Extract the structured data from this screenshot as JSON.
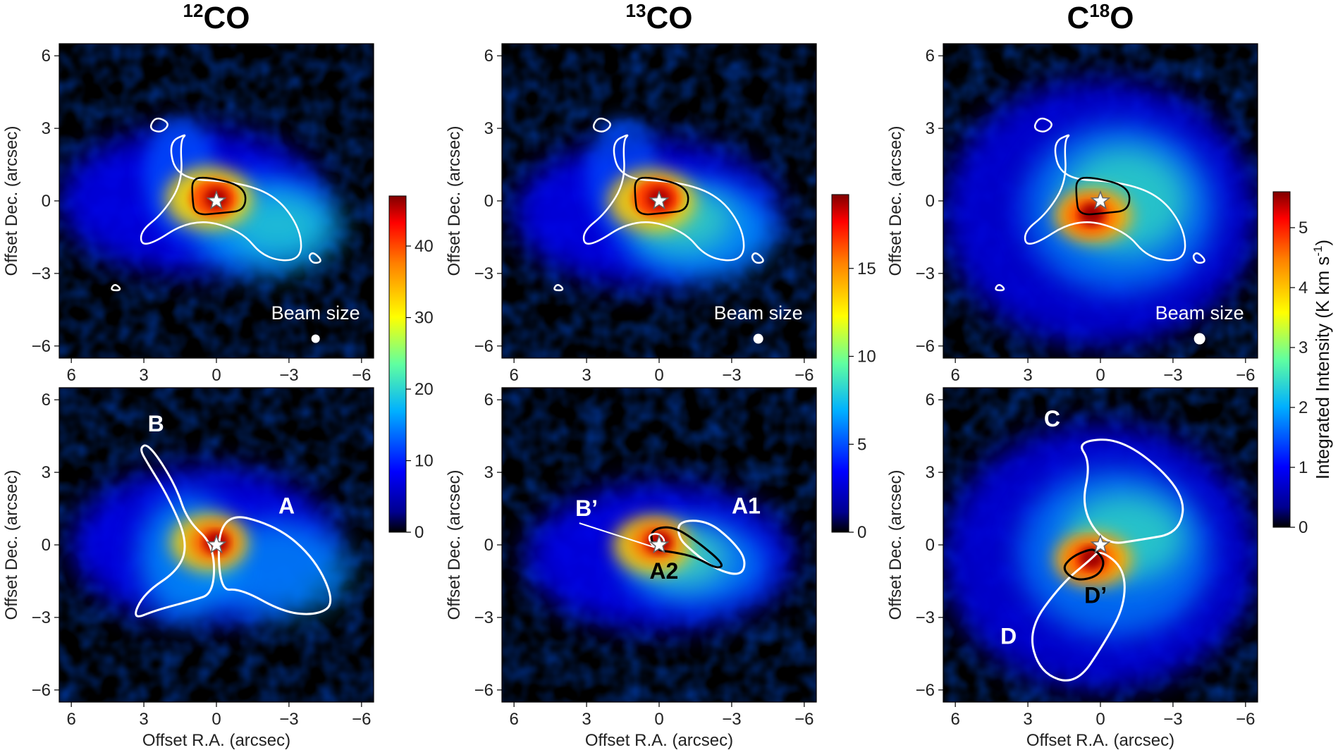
{
  "columns": [
    {
      "id": "12co",
      "title_sup": "12",
      "title_main": "CO",
      "cbar_max": 47,
      "cbar_ticks": [
        0,
        10,
        20,
        30,
        40
      ],
      "beam_label": "Beam size",
      "beam_r": 6
    },
    {
      "id": "13co",
      "title_sup": "13",
      "title_main": "CO",
      "cbar_max": 19.2,
      "cbar_ticks": [
        0,
        5,
        10,
        15
      ],
      "beam_label": "Beam size",
      "beam_r": 7
    },
    {
      "id": "c18o",
      "title_pre": "C",
      "title_sup": "18",
      "title_main": "O",
      "cbar_max": 5.6,
      "cbar_ticks": [
        0,
        1,
        2,
        3,
        4,
        5
      ],
      "beam_label": "Beam size",
      "beam_r": 8
    }
  ],
  "cbar_label_main": "Integrated Intensity (K km s",
  "cbar_label_sup": "-1",
  "cbar_label_end": ")",
  "chart_data": [
    {
      "type": "heatmap",
      "panel": "12CO integrated intensity map",
      "xlabel": "Offset R.A. (arcsec)",
      "ylabel": "Offset Dec. (arcsec)",
      "xlim": [
        6.5,
        -6.5
      ],
      "ylim": [
        -6.5,
        6.5
      ],
      "xticks": [
        6,
        3,
        0,
        -3,
        -6
      ],
      "yticks": [
        6,
        3,
        0,
        -3,
        -6
      ],
      "colorbar": {
        "min": 0,
        "max": 47,
        "ticks": [
          0,
          10,
          20,
          30,
          40
        ],
        "cmap": "jet"
      },
      "peak": {
        "x": 0,
        "y": 0,
        "value": 47
      },
      "annotations": [
        "Beam size"
      ]
    },
    {
      "type": "heatmap",
      "panel": "13CO integrated intensity map",
      "xlabel": "Offset R.A. (arcsec)",
      "ylabel": "Offset Dec. (arcsec)",
      "xlim": [
        6.5,
        -6.5
      ],
      "ylim": [
        -6.5,
        6.5
      ],
      "xticks": [
        6,
        3,
        0,
        -3,
        -6
      ],
      "yticks": [
        6,
        3,
        0,
        -3,
        -6
      ],
      "colorbar": {
        "min": 0,
        "max": 19.2,
        "ticks": [
          0,
          5,
          10,
          15
        ],
        "cmap": "jet"
      },
      "peak": {
        "x": 0,
        "y": 0,
        "value": 19
      },
      "annotations": [
        "Beam size"
      ]
    },
    {
      "type": "heatmap",
      "panel": "C18O integrated intensity map",
      "xlabel": "Offset R.A. (arcsec)",
      "ylabel": "Offset Dec. (arcsec)",
      "xlim": [
        6.5,
        -6.5
      ],
      "ylim": [
        -6.5,
        6.5
      ],
      "xticks": [
        6,
        3,
        0,
        -3,
        -6
      ],
      "yticks": [
        6,
        3,
        0,
        -3,
        -6
      ],
      "colorbar": {
        "min": 0,
        "max": 5.6,
        "ticks": [
          0,
          1,
          2,
          3,
          4,
          5
        ],
        "cmap": "jet",
        "label": "Integrated Intensity (K km s-1)"
      },
      "peak": {
        "x": 0.3,
        "y": -0.5,
        "value": 5.5
      },
      "annotations": [
        "Beam size"
      ]
    },
    {
      "type": "heatmap",
      "panel": "12CO with regions",
      "xlabel": "Offset R.A. (arcsec)",
      "ylabel": "Offset Dec. (arcsec)",
      "xticks": [
        6,
        3,
        0,
        -3,
        -6
      ],
      "yticks": [
        6,
        3,
        0,
        -3,
        -6
      ],
      "regions": [
        {
          "label": "A"
        },
        {
          "label": "B"
        }
      ]
    },
    {
      "type": "heatmap",
      "panel": "13CO with regions",
      "xlabel": "Offset R.A. (arcsec)",
      "ylabel": "Offset Dec. (arcsec)",
      "xticks": [
        6,
        3,
        0,
        -3,
        -6
      ],
      "yticks": [
        6,
        3,
        0,
        -3,
        -6
      ],
      "regions": [
        {
          "label": "A1"
        },
        {
          "label": "A2"
        },
        {
          "label": "B’"
        }
      ]
    },
    {
      "type": "heatmap",
      "panel": "C18O with regions",
      "xlabel": "Offset R.A. (arcsec)",
      "ylabel": "Offset Dec. (arcsec)",
      "xticks": [
        6,
        3,
        0,
        -3,
        -6
      ],
      "yticks": [
        6,
        3,
        0,
        -3,
        -6
      ],
      "regions": [
        {
          "label": "C"
        },
        {
          "label": "D"
        },
        {
          "label": "D’"
        }
      ]
    }
  ]
}
